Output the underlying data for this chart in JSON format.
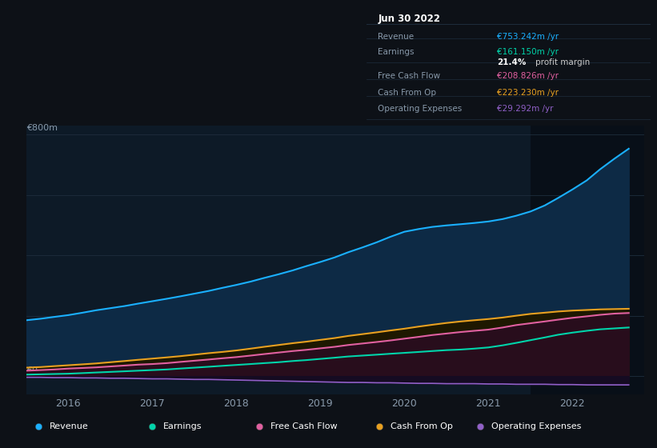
{
  "bg_color": "#0d1117",
  "plot_bg": "#0d1a27",
  "grid_color": "#1e2d3d",
  "xlim": [
    2015.5,
    2022.85
  ],
  "ylim": [
    -60,
    830
  ],
  "xtick_labels": [
    "2016",
    "2017",
    "2018",
    "2019",
    "2020",
    "2021",
    "2022"
  ],
  "xtick_positions": [
    2016,
    2017,
    2018,
    2019,
    2020,
    2021,
    2022
  ],
  "highlight_x_start": 2021.5,
  "highlight_x_end": 2022.85,
  "series_x": [
    2015.5,
    2015.67,
    2015.83,
    2016.0,
    2016.17,
    2016.33,
    2016.5,
    2016.67,
    2016.83,
    2017.0,
    2017.17,
    2017.33,
    2017.5,
    2017.67,
    2017.83,
    2018.0,
    2018.17,
    2018.33,
    2018.5,
    2018.67,
    2018.83,
    2019.0,
    2019.17,
    2019.33,
    2019.5,
    2019.67,
    2019.83,
    2020.0,
    2020.17,
    2020.33,
    2020.5,
    2020.67,
    2020.83,
    2021.0,
    2021.17,
    2021.33,
    2021.5,
    2021.67,
    2021.83,
    2022.0,
    2022.17,
    2022.33,
    2022.5,
    2022.67
  ],
  "revenue": [
    185,
    190,
    196,
    202,
    210,
    218,
    225,
    232,
    240,
    248,
    256,
    264,
    273,
    282,
    292,
    302,
    313,
    325,
    337,
    350,
    364,
    378,
    393,
    410,
    426,
    443,
    461,
    478,
    487,
    494,
    499,
    503,
    507,
    512,
    520,
    531,
    545,
    565,
    590,
    618,
    648,
    685,
    720,
    753
  ],
  "earnings": [
    5,
    6,
    7,
    8,
    10,
    12,
    14,
    16,
    18,
    20,
    22,
    25,
    28,
    31,
    34,
    37,
    40,
    43,
    46,
    50,
    53,
    57,
    61,
    65,
    68,
    71,
    74,
    77,
    80,
    83,
    86,
    88,
    91,
    95,
    102,
    110,
    119,
    128,
    137,
    144,
    150,
    155,
    158,
    161
  ],
  "free_cash_flow": [
    18,
    20,
    22,
    25,
    27,
    29,
    32,
    35,
    38,
    40,
    43,
    47,
    51,
    55,
    59,
    63,
    68,
    73,
    78,
    83,
    87,
    92,
    97,
    103,
    108,
    113,
    118,
    124,
    130,
    136,
    141,
    146,
    150,
    154,
    161,
    169,
    175,
    181,
    187,
    193,
    198,
    203,
    207,
    209
  ],
  "cash_from_op": [
    28,
    30,
    33,
    36,
    39,
    42,
    46,
    50,
    54,
    58,
    62,
    66,
    71,
    76,
    80,
    85,
    91,
    97,
    103,
    109,
    114,
    120,
    126,
    133,
    139,
    145,
    151,
    157,
    164,
    170,
    176,
    181,
    185,
    189,
    194,
    200,
    206,
    210,
    214,
    217,
    219,
    221,
    222,
    223
  ],
  "operating_expenses": [
    -4,
    -4,
    -5,
    -5,
    -6,
    -6,
    -7,
    -7,
    -8,
    -9,
    -9,
    -10,
    -11,
    -11,
    -12,
    -13,
    -14,
    -15,
    -16,
    -17,
    -18,
    -19,
    -20,
    -21,
    -21,
    -22,
    -22,
    -23,
    -24,
    -24,
    -25,
    -25,
    -25,
    -26,
    -26,
    -27,
    -27,
    -27,
    -28,
    -28,
    -29,
    -29,
    -29,
    -29
  ],
  "revenue_color": "#1ab0ff",
  "revenue_fill": "#0d2a45",
  "earnings_color": "#00d4aa",
  "earnings_fill": "#0a3535",
  "free_cash_flow_color": "#e060a0",
  "free_cash_flow_fill": "#3a1535",
  "cash_from_op_color": "#e8a020",
  "cash_from_op_fill": "#252010",
  "operating_expenses_color": "#9060c8",
  "operating_expenses_fill": "#1a0f28",
  "info_box_bg": "#060d14",
  "info_box_border": "#2a3a4a",
  "label_color": "#8899aa",
  "divider_color": "#1e2d3d",
  "info_box": {
    "title": "Jun 30 2022",
    "rows": [
      {
        "label": "Revenue",
        "value": "€753.242m /yr",
        "value_color": "#1ab0ff"
      },
      {
        "label": "Earnings",
        "value": "€161.150m /yr",
        "value_color": "#00d4aa"
      },
      {
        "label": "",
        "value": " profit margin",
        "value_color": "#cccccc",
        "bold": "21.4%"
      },
      {
        "label": "Free Cash Flow",
        "value": "€208.826m /yr",
        "value_color": "#e060a0"
      },
      {
        "label": "Cash From Op",
        "value": "€223.230m /yr",
        "value_color": "#e8a020"
      },
      {
        "label": "Operating Expenses",
        "value": "€29.292m /yr",
        "value_color": "#9060c8"
      }
    ]
  },
  "legend": [
    {
      "label": "Revenue",
      "color": "#1ab0ff"
    },
    {
      "label": "Earnings",
      "color": "#00d4aa"
    },
    {
      "label": "Free Cash Flow",
      "color": "#e060a0"
    },
    {
      "label": "Cash From Op",
      "color": "#e8a020"
    },
    {
      "label": "Operating Expenses",
      "color": "#9060c8"
    }
  ]
}
